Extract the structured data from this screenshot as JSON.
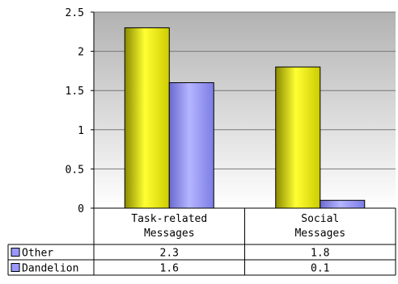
{
  "chart_data": {
    "type": "bar",
    "categories": [
      "Task-related Messages",
      "Social Messages"
    ],
    "category_lines": [
      [
        "Task-related",
        "Messages"
      ],
      [
        "Social",
        "Messages"
      ]
    ],
    "series": [
      {
        "name": "Other",
        "values": [
          2.3,
          1.8
        ],
        "value_labels": [
          "2.3",
          "1.8"
        ],
        "color": "#ffff00"
      },
      {
        "name": "Dandelion",
        "values": [
          1.6,
          0.1
        ],
        "value_labels": [
          "1.6",
          "0.1"
        ],
        "color": "#9999ff"
      }
    ],
    "ylim": [
      0,
      2.5
    ],
    "yticks": [
      0,
      0.5,
      1,
      1.5,
      2,
      2.5
    ],
    "ytick_labels": [
      "0",
      "0.5",
      "1",
      "1.5",
      "2",
      "2.5"
    ],
    "grid": true,
    "plot_background": "gray gradient",
    "legend": "data table below chart",
    "title": "",
    "xlabel": "",
    "ylabel": ""
  }
}
